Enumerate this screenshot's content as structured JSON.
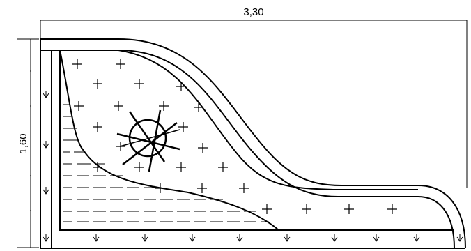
{
  "dimensions": {
    "width_label": "3,30",
    "height_label": "1,60"
  },
  "colors": {
    "line": "#000000",
    "background": "#ffffff"
  },
  "symbols": {
    "plant": "plus-mark",
    "ground": "down-arrow-mark",
    "paving": "dash-hatch",
    "tree": "tree-symbol"
  }
}
